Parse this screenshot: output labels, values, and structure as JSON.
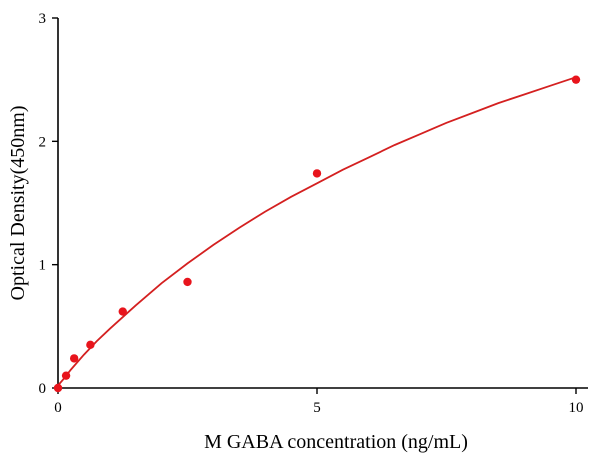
{
  "chart_data": {
    "type": "scatter",
    "title": "",
    "xlabel": "M GABA concentration (ng/mL)",
    "ylabel": "Optical Density(450nm)",
    "xlim": [
      0,
      10
    ],
    "ylim": [
      0,
      3
    ],
    "x_ticks": [
      "0",
      "5",
      "10"
    ],
    "y_ticks": [
      "0",
      "1",
      "2",
      "3"
    ],
    "grid": false,
    "legend": "none",
    "series": [
      {
        "marker_color": "#e8141c",
        "points": [
          {
            "x": 0,
            "y": 0.0
          },
          {
            "x": 0.156,
            "y": 0.1
          },
          {
            "x": 0.312,
            "y": 0.24
          },
          {
            "x": 0.625,
            "y": 0.35
          },
          {
            "x": 1.25,
            "y": 0.62
          },
          {
            "x": 2.5,
            "y": 0.86
          },
          {
            "x": 5,
            "y": 1.74
          },
          {
            "x": 10,
            "y": 2.5
          }
        ]
      }
    ],
    "fit_curve": {
      "color": "#d42020",
      "x": [
        0,
        0.1,
        0.25,
        0.5,
        0.75,
        1,
        1.5,
        2,
        2.5,
        3,
        3.5,
        4,
        4.5,
        5,
        5.5,
        6,
        6.5,
        7,
        7.5,
        8,
        8.5,
        9,
        9.5,
        10
      ],
      "y": [
        0.02,
        0.07,
        0.15,
        0.27,
        0.38,
        0.48,
        0.67,
        0.85,
        1.01,
        1.16,
        1.3,
        1.43,
        1.55,
        1.66,
        1.77,
        1.87,
        1.97,
        2.06,
        2.15,
        2.23,
        2.31,
        2.38,
        2.45,
        2.52
      ]
    }
  }
}
